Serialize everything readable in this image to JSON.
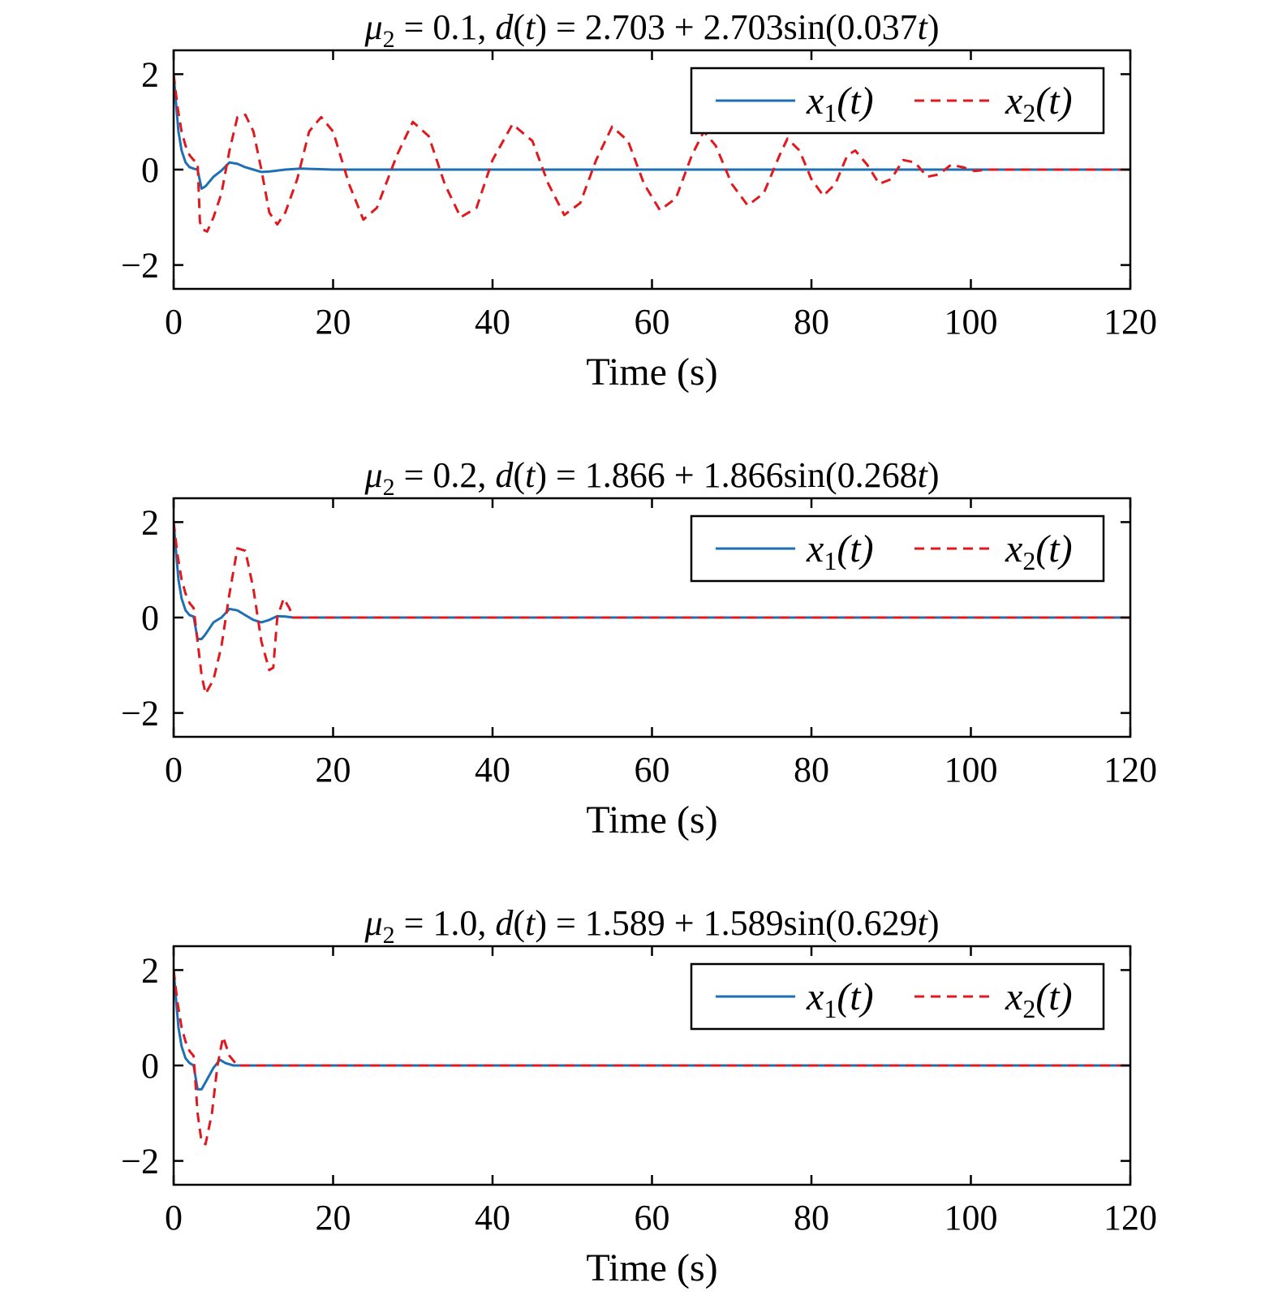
{
  "chart_data": [
    {
      "type": "line",
      "title": {
        "mu": "μ",
        "mu_sub": "2",
        "eq": " = 0.1, ",
        "d": "d",
        "paren1": "(",
        "t1": "t",
        "paren2": ") = 2.703 + 2.703sin(0.037",
        "t2": "t",
        "paren3": ")"
      },
      "xlabel": "Time (s)",
      "xlim": [
        0,
        120
      ],
      "ylim": [
        -2.5,
        2.5
      ],
      "xticks": [
        "0",
        "20",
        "40",
        "60",
        "80",
        "100",
        "120"
      ],
      "yticks": [
        "2",
        "0",
        "−2"
      ],
      "ytick_values": [
        2,
        0,
        -2
      ],
      "xtick_values": [
        0,
        20,
        40,
        60,
        80,
        100,
        120
      ],
      "legend": {
        "position": "top-right",
        "entries": [
          {
            "base": "x",
            "sub": "1",
            "arg": "(t)"
          },
          {
            "base": "x",
            "sub": "2",
            "arg": "(t)"
          }
        ]
      },
      "series": [
        {
          "color": "#1f6fb4",
          "style": "solid",
          "x": [
            0,
            0.3,
            0.6,
            1.0,
            1.5,
            2.0,
            2.5,
            3.0,
            3.5,
            4.0,
            5.0,
            6.0,
            7.0,
            8.0,
            9.0,
            10.0,
            11.0,
            12.0,
            14.0,
            16.0,
            18.0,
            20.0,
            24.0,
            30.0,
            40.0,
            120.0
          ],
          "y": [
            2.0,
            1.4,
            0.8,
            0.4,
            0.15,
            0.05,
            0.02,
            0.0,
            -0.4,
            -0.35,
            -0.15,
            -0.02,
            0.15,
            0.12,
            0.05,
            0.0,
            -0.05,
            -0.04,
            0.0,
            0.02,
            0.01,
            0.0,
            0.0,
            0.0,
            0.0,
            0.0
          ]
        },
        {
          "color": "#e0191f",
          "style": "dashed",
          "x": [
            0,
            0.5,
            1.0,
            1.5,
            2.0,
            2.5,
            3.0,
            3.3,
            3.6,
            4.2,
            5.0,
            6.0,
            7.0,
            8.0,
            9.0,
            10.0,
            11.0,
            12.0,
            13.0,
            14.0,
            15.5,
            17.0,
            18.5,
            20.0,
            22.0,
            23.8,
            25.5,
            28.0,
            30.0,
            32.0,
            34.0,
            36.0,
            38.0,
            40.0,
            42.5,
            45.0,
            47.0,
            49.0,
            51.0,
            53.0,
            55.0,
            57.0,
            59.0,
            61.0,
            63.0,
            65.0,
            66.5,
            68.0,
            70.0,
            72.0,
            74.0,
            76.0,
            77.0,
            78.5,
            80.0,
            81.5,
            83.0,
            84.5,
            85.5,
            87.0,
            88.5,
            90.0,
            91.5,
            93.0,
            94.5,
            96.0,
            97.5,
            99.0,
            100.5,
            102.0,
            104.0,
            108.0,
            120.0
          ],
          "y": [
            2.0,
            1.3,
            0.8,
            0.5,
            0.3,
            0.2,
            0.15,
            -1.1,
            -1.25,
            -1.3,
            -1.0,
            -0.5,
            0.4,
            1.1,
            1.15,
            0.8,
            0.0,
            -0.9,
            -1.15,
            -0.9,
            -0.2,
            0.8,
            1.1,
            0.8,
            -0.3,
            -1.05,
            -0.8,
            0.3,
            1.0,
            0.7,
            -0.3,
            -1.0,
            -0.8,
            0.2,
            0.95,
            0.6,
            -0.3,
            -0.95,
            -0.7,
            0.2,
            0.9,
            0.6,
            -0.3,
            -0.85,
            -0.6,
            0.3,
            0.8,
            0.5,
            -0.3,
            -0.75,
            -0.5,
            0.3,
            0.65,
            0.4,
            -0.2,
            -0.55,
            -0.3,
            0.3,
            0.4,
            0.1,
            -0.3,
            -0.2,
            0.2,
            0.15,
            -0.15,
            -0.1,
            0.1,
            0.05,
            -0.03,
            0.0,
            0.0,
            0.0,
            0.0
          ]
        }
      ]
    },
    {
      "type": "line",
      "title": {
        "mu": "μ",
        "mu_sub": "2",
        "eq": " = 0.2, ",
        "d": "d",
        "paren1": "(",
        "t1": "t",
        "paren2": ") = 1.866 + 1.866sin(0.268",
        "t2": "t",
        "paren3": ")"
      },
      "xlabel": "Time (s)",
      "xlim": [
        0,
        120
      ],
      "ylim": [
        -2.5,
        2.5
      ],
      "xticks": [
        "0",
        "20",
        "40",
        "60",
        "80",
        "100",
        "120"
      ],
      "yticks": [
        "2",
        "0",
        "−2"
      ],
      "ytick_values": [
        2,
        0,
        -2
      ],
      "xtick_values": [
        0,
        20,
        40,
        60,
        80,
        100,
        120
      ],
      "legend": {
        "position": "top-right",
        "entries": [
          {
            "base": "x",
            "sub": "1",
            "arg": "(t)"
          },
          {
            "base": "x",
            "sub": "2",
            "arg": "(t)"
          }
        ]
      },
      "series": [
        {
          "color": "#1f6fb4",
          "style": "solid",
          "x": [
            0,
            0.3,
            0.6,
            1.0,
            1.5,
            2.0,
            2.5,
            3.0,
            3.5,
            4.0,
            5.0,
            6.0,
            7.0,
            8.0,
            9.0,
            10.0,
            11.0,
            12.0,
            13.0,
            14.0,
            15.0,
            16.0,
            120.0
          ],
          "y": [
            2.0,
            1.4,
            0.8,
            0.4,
            0.15,
            0.05,
            0.02,
            -0.45,
            -0.45,
            -0.35,
            -0.1,
            0.0,
            0.18,
            0.15,
            0.05,
            -0.05,
            -0.1,
            -0.05,
            0.03,
            0.02,
            0.0,
            0.0,
            0.0
          ]
        },
        {
          "color": "#e0191f",
          "style": "dashed",
          "x": [
            0,
            0.5,
            1.0,
            1.5,
            2.0,
            2.5,
            3.0,
            3.5,
            4.0,
            5.0,
            6.0,
            7.0,
            8.0,
            9.0,
            10.0,
            11.0,
            12.0,
            12.5,
            13.0,
            13.8,
            14.5,
            15.0,
            16.0,
            120.0
          ],
          "y": [
            2.0,
            1.3,
            0.8,
            0.5,
            0.3,
            0.2,
            -0.5,
            -1.2,
            -1.6,
            -1.3,
            -0.6,
            0.5,
            1.45,
            1.4,
            0.6,
            -0.5,
            -1.1,
            -1.05,
            0.0,
            0.4,
            0.2,
            0.0,
            0.0,
            0.0
          ]
        }
      ]
    },
    {
      "type": "line",
      "title": {
        "mu": "μ",
        "mu_sub": "2",
        "eq": " = 1.0, ",
        "d": "d",
        "paren1": "(",
        "t1": "t",
        "paren2": ") = 1.589 + 1.589sin(0.629",
        "t2": "t",
        "paren3": ")"
      },
      "xlabel": "Time (s)",
      "xlim": [
        0,
        120
      ],
      "ylim": [
        -2.5,
        2.5
      ],
      "xticks": [
        "0",
        "20",
        "40",
        "60",
        "80",
        "100",
        "120"
      ],
      "yticks": [
        "2",
        "0",
        "−2"
      ],
      "ytick_values": [
        2,
        0,
        -2
      ],
      "xtick_values": [
        0,
        20,
        40,
        60,
        80,
        100,
        120
      ],
      "legend": {
        "position": "top-right",
        "entries": [
          {
            "base": "x",
            "sub": "1",
            "arg": "(t)"
          },
          {
            "base": "x",
            "sub": "2",
            "arg": "(t)"
          }
        ]
      },
      "series": [
        {
          "color": "#1f6fb4",
          "style": "solid",
          "x": [
            0,
            0.3,
            0.6,
            1.0,
            1.5,
            2.0,
            2.5,
            3.0,
            3.5,
            4.0,
            5.0,
            5.8,
            6.5,
            7.5,
            8.5,
            120.0
          ],
          "y": [
            2.0,
            1.4,
            0.8,
            0.4,
            0.15,
            0.05,
            0.0,
            -0.5,
            -0.5,
            -0.35,
            -0.05,
            0.12,
            0.05,
            0.0,
            0.0,
            0.0
          ]
        },
        {
          "color": "#e0191f",
          "style": "dashed",
          "x": [
            0,
            0.5,
            1.0,
            1.5,
            2.0,
            2.5,
            3.0,
            3.5,
            4.0,
            4.8,
            5.5,
            6.2,
            7.0,
            8.0,
            9.0,
            120.0
          ],
          "y": [
            2.0,
            1.3,
            0.8,
            0.5,
            0.3,
            0.2,
            -1.0,
            -1.6,
            -1.65,
            -1.0,
            0.0,
            0.6,
            0.2,
            0.0,
            0.0,
            0.0
          ]
        }
      ]
    }
  ]
}
